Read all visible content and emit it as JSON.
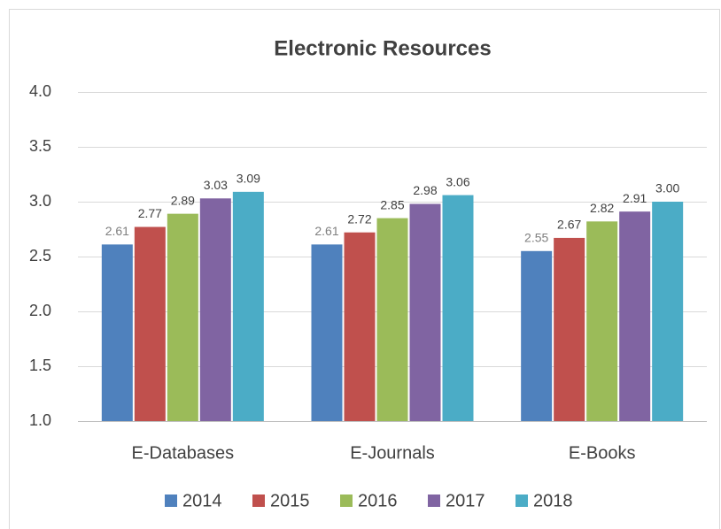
{
  "chart_data": {
    "type": "bar",
    "title": "Electronic Resources",
    "categories": [
      "E-Databases",
      "E-Journals",
      "E-Books"
    ],
    "series": [
      {
        "name": "2014",
        "color": "#4f81bd",
        "values": [
          2.61,
          2.61,
          2.55
        ]
      },
      {
        "name": "2015",
        "color": "#c0504d",
        "values": [
          2.77,
          2.72,
          2.67
        ]
      },
      {
        "name": "2016",
        "color": "#9bbb59",
        "values": [
          2.89,
          2.85,
          2.82
        ]
      },
      {
        "name": "2017",
        "color": "#8064a2",
        "values": [
          3.03,
          2.98,
          2.91
        ]
      },
      {
        "name": "2018",
        "color": "#4bacc6",
        "values": [
          3.09,
          3.06,
          3
        ],
        "value_labels": [
          "3.09",
          "3.06",
          "3.00"
        ]
      }
    ],
    "ylim": [
      1,
      4
    ],
    "yticks": [
      {
        "value": 1,
        "label": "1.0"
      },
      1.5,
      {
        "value": 2,
        "label": "2.0"
      },
      2.5,
      {
        "value": 3,
        "label": "3.0"
      },
      3.5,
      {
        "value": 4,
        "label": "4.0"
      }
    ],
    "grid": true,
    "legend": "bottom"
  }
}
